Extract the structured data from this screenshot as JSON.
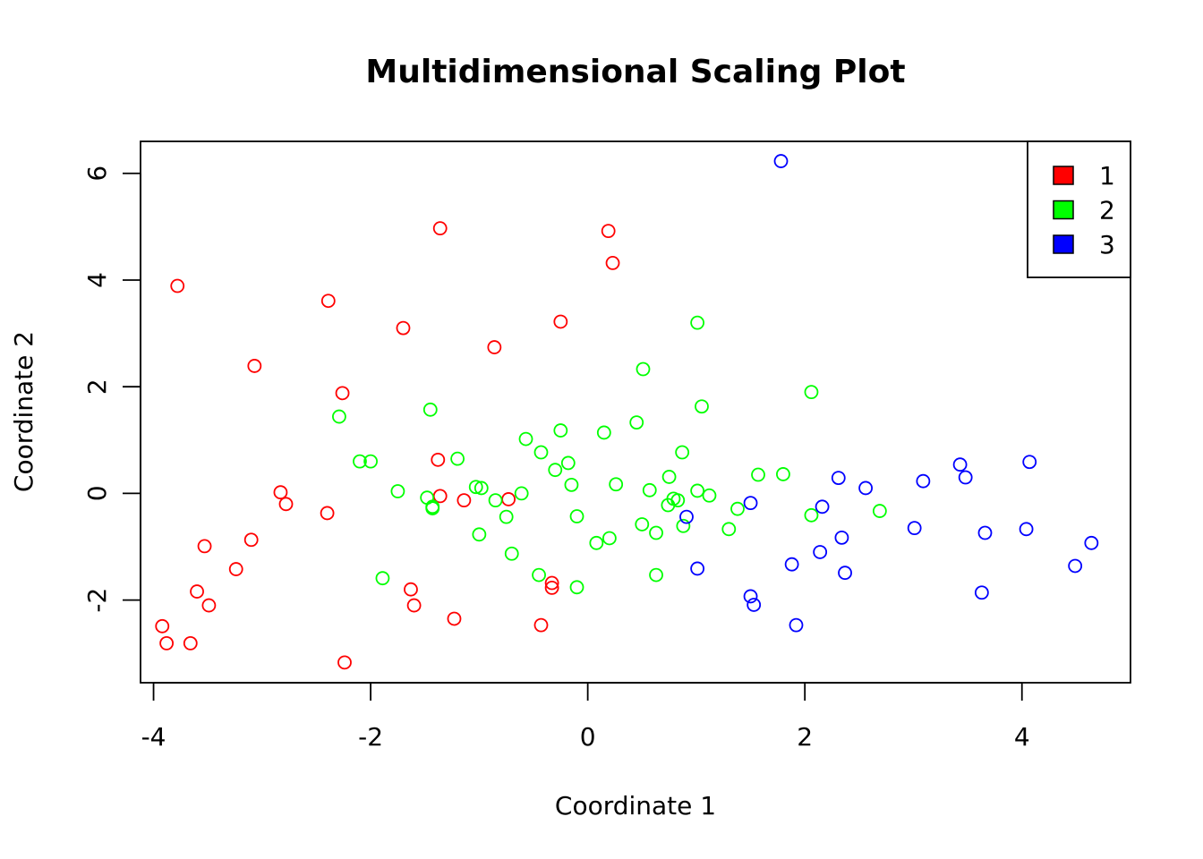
{
  "chart_data": {
    "type": "scatter",
    "title": "Multidimensional Scaling Plot",
    "xlabel": "Coordinate 1",
    "ylabel": "Coordinate 2",
    "xlim": [
      -4.12,
      5.0
    ],
    "ylim": [
      -3.55,
      6.6
    ],
    "x_ticks": [
      -4,
      -2,
      0,
      2,
      4
    ],
    "y_ticks": [
      -2,
      0,
      2,
      4,
      6
    ],
    "legend_position": "top-right",
    "marker": "open-circle",
    "series": [
      {
        "name": "1",
        "color": "#ff0000",
        "points": [
          [
            -3.78,
            3.89
          ],
          [
            -3.07,
            2.39
          ],
          [
            -2.39,
            3.61
          ],
          [
            -2.26,
            1.88
          ],
          [
            -1.7,
            3.1
          ],
          [
            -1.36,
            4.97
          ],
          [
            -0.86,
            2.74
          ],
          [
            -0.25,
            3.22
          ],
          [
            0.19,
            4.92
          ],
          [
            0.23,
            4.32
          ],
          [
            -1.38,
            0.63
          ],
          [
            -2.83,
            0.02
          ],
          [
            -2.78,
            -0.2
          ],
          [
            -2.4,
            -0.37
          ],
          [
            -1.36,
            -0.05
          ],
          [
            -1.14,
            -0.13
          ],
          [
            -0.73,
            -0.11
          ],
          [
            -3.53,
            -0.99
          ],
          [
            -3.1,
            -0.87
          ],
          [
            -3.24,
            -1.42
          ],
          [
            -3.6,
            -1.84
          ],
          [
            -3.49,
            -2.1
          ],
          [
            -3.92,
            -2.49
          ],
          [
            -3.88,
            -2.81
          ],
          [
            -3.66,
            -2.81
          ],
          [
            -2.24,
            -3.17
          ],
          [
            -1.63,
            -1.8
          ],
          [
            -1.6,
            -2.1
          ],
          [
            -1.23,
            -2.35
          ],
          [
            -0.33,
            -1.68
          ],
          [
            -0.33,
            -1.77
          ],
          [
            -0.43,
            -2.47
          ]
        ]
      },
      {
        "name": "2",
        "color": "#00ff00",
        "points": [
          [
            1.01,
            3.2
          ],
          [
            0.51,
            2.33
          ],
          [
            2.06,
            1.9
          ],
          [
            1.05,
            1.63
          ],
          [
            -2.29,
            1.44
          ],
          [
            -1.45,
            1.57
          ],
          [
            0.45,
            1.33
          ],
          [
            -0.25,
            1.18
          ],
          [
            0.15,
            1.14
          ],
          [
            -0.57,
            1.02
          ],
          [
            -0.43,
            0.77
          ],
          [
            0.87,
            0.77
          ],
          [
            -2.1,
            0.6
          ],
          [
            -2.0,
            0.6
          ],
          [
            -1.2,
            0.65
          ],
          [
            -0.18,
            0.57
          ],
          [
            -0.3,
            0.44
          ],
          [
            1.57,
            0.35
          ],
          [
            1.8,
            0.36
          ],
          [
            0.75,
            0.31
          ],
          [
            0.26,
            0.17
          ],
          [
            -0.15,
            0.16
          ],
          [
            -1.03,
            0.12
          ],
          [
            -0.98,
            0.1
          ],
          [
            -1.75,
            0.04
          ],
          [
            0.57,
            0.06
          ],
          [
            1.01,
            0.05
          ],
          [
            1.12,
            -0.04
          ],
          [
            -0.61,
            0.0
          ],
          [
            -1.48,
            -0.08
          ],
          [
            -1.43,
            -0.25
          ],
          [
            -1.43,
            -0.28
          ],
          [
            -0.85,
            -0.13
          ],
          [
            0.79,
            -0.1
          ],
          [
            0.83,
            -0.13
          ],
          [
            0.74,
            -0.22
          ],
          [
            1.38,
            -0.29
          ],
          [
            2.69,
            -0.33
          ],
          [
            2.06,
            -0.41
          ],
          [
            -0.75,
            -0.44
          ],
          [
            -0.1,
            -0.43
          ],
          [
            0.5,
            -0.58
          ],
          [
            0.63,
            -0.74
          ],
          [
            0.88,
            -0.61
          ],
          [
            1.3,
            -0.67
          ],
          [
            -1.0,
            -0.77
          ],
          [
            0.08,
            -0.93
          ],
          [
            0.2,
            -0.84
          ],
          [
            -0.7,
            -1.13
          ],
          [
            -1.89,
            -1.59
          ],
          [
            -0.45,
            -1.53
          ],
          [
            0.63,
            -1.53
          ],
          [
            -0.1,
            -1.76
          ]
        ]
      },
      {
        "name": "3",
        "color": "#0000ff",
        "points": [
          [
            1.78,
            6.23
          ],
          [
            3.43,
            0.54
          ],
          [
            3.48,
            0.3
          ],
          [
            4.07,
            0.59
          ],
          [
            3.09,
            0.23
          ],
          [
            2.31,
            0.29
          ],
          [
            2.56,
            0.1
          ],
          [
            2.16,
            -0.25
          ],
          [
            1.5,
            -0.18
          ],
          [
            0.91,
            -0.44
          ],
          [
            3.01,
            -0.65
          ],
          [
            3.66,
            -0.74
          ],
          [
            4.04,
            -0.67
          ],
          [
            2.34,
            -0.83
          ],
          [
            2.14,
            -1.1
          ],
          [
            1.88,
            -1.33
          ],
          [
            1.01,
            -1.41
          ],
          [
            2.37,
            -1.49
          ],
          [
            4.49,
            -1.36
          ],
          [
            4.64,
            -0.93
          ],
          [
            3.63,
            -1.86
          ],
          [
            1.5,
            -1.93
          ],
          [
            1.53,
            -2.09
          ],
          [
            1.92,
            -2.47
          ]
        ]
      }
    ]
  }
}
